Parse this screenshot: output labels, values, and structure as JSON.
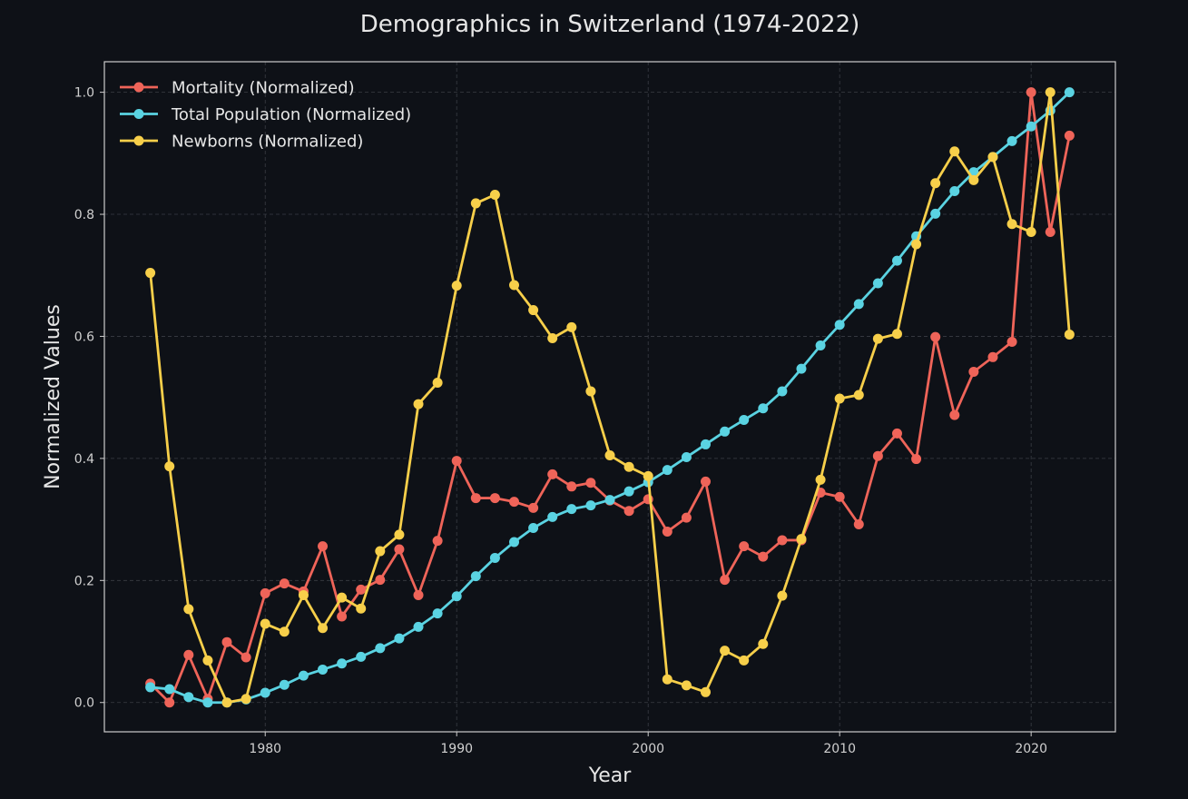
{
  "chart_data": {
    "type": "line",
    "title": "Demographics in Switzerland (1974-2022)",
    "xlabel": "Year",
    "ylabel": "Normalized Values",
    "xlim": [
      1971.6,
      2024.4
    ],
    "ylim": [
      -0.048,
      1.05
    ],
    "x_ticks": [
      1980,
      1990,
      2000,
      2010,
      2020
    ],
    "y_ticks": [
      0.0,
      0.2,
      0.4,
      0.6,
      0.8,
      1.0
    ],
    "x_tick_labels": [
      "1980",
      "1990",
      "2000",
      "2010",
      "2020"
    ],
    "y_tick_labels": [
      "0.0",
      "0.2",
      "0.4",
      "0.6",
      "0.8",
      "1.0"
    ],
    "grid": true,
    "legend_position": "top-left",
    "background": "#0e1117",
    "x": [
      1974,
      1975,
      1976,
      1977,
      1978,
      1979,
      1980,
      1981,
      1982,
      1983,
      1984,
      1985,
      1986,
      1987,
      1988,
      1989,
      1990,
      1991,
      1992,
      1993,
      1994,
      1995,
      1996,
      1997,
      1998,
      1999,
      2000,
      2001,
      2002,
      2003,
      2004,
      2005,
      2006,
      2007,
      2008,
      2009,
      2010,
      2011,
      2012,
      2013,
      2014,
      2015,
      2016,
      2017,
      2018,
      2019,
      2020,
      2021,
      2022
    ],
    "series": [
      {
        "name": "Mortality (Normalized)",
        "color": "#ef6459",
        "values": [
          0.031,
          0.0,
          0.078,
          0.006,
          0.099,
          0.074,
          0.179,
          0.195,
          0.182,
          0.256,
          0.141,
          0.185,
          0.201,
          0.251,
          0.176,
          0.265,
          0.396,
          0.335,
          0.335,
          0.329,
          0.319,
          0.374,
          0.354,
          0.36,
          0.331,
          0.314,
          0.333,
          0.28,
          0.303,
          0.362,
          0.201,
          0.256,
          0.239,
          0.266,
          0.266,
          0.344,
          0.337,
          0.292,
          0.404,
          0.441,
          0.399,
          0.599,
          0.471,
          0.542,
          0.566,
          0.591,
          1.0,
          0.771,
          0.929
        ]
      },
      {
        "name": "Total Population (Normalized)",
        "color": "#5ad3e2",
        "values": [
          0.025,
          0.022,
          0.009,
          0.0,
          0.0,
          0.005,
          0.016,
          0.029,
          0.044,
          0.054,
          0.064,
          0.075,
          0.089,
          0.105,
          0.124,
          0.146,
          0.174,
          0.207,
          0.237,
          0.263,
          0.286,
          0.304,
          0.317,
          0.323,
          0.332,
          0.346,
          0.361,
          0.381,
          0.402,
          0.423,
          0.444,
          0.463,
          0.482,
          0.51,
          0.547,
          0.585,
          0.619,
          0.653,
          0.687,
          0.724,
          0.764,
          0.801,
          0.838,
          0.869,
          0.894,
          0.92,
          0.944,
          0.97,
          1.0
        ]
      },
      {
        "name": "Newborns (Normalized)",
        "color": "#f7cf4a",
        "values": [
          0.704,
          0.387,
          0.153,
          0.069,
          0.0,
          0.006,
          0.129,
          0.116,
          0.176,
          0.122,
          0.172,
          0.154,
          0.248,
          0.275,
          0.489,
          0.524,
          0.683,
          0.818,
          0.832,
          0.684,
          0.643,
          0.597,
          0.615,
          0.51,
          0.405,
          0.386,
          0.371,
          0.038,
          0.028,
          0.017,
          0.085,
          0.069,
          0.096,
          0.175,
          0.268,
          0.365,
          0.498,
          0.504,
          0.596,
          0.604,
          0.751,
          0.851,
          0.903,
          0.856,
          0.894,
          0.784,
          0.771,
          1.0,
          0.603
        ]
      }
    ]
  }
}
